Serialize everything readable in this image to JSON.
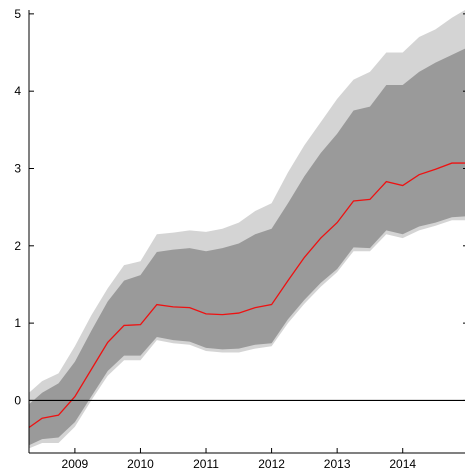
{
  "chart_data": {
    "type": "area",
    "title": "",
    "xlabel": "",
    "ylabel": "",
    "xlim": [
      2008.3,
      2014.95
    ],
    "ylim": [
      -0.68,
      5.05
    ],
    "x_ticks": [
      2009,
      2010,
      2011,
      2012,
      2013,
      2014
    ],
    "x_tick_labels": [
      "2009",
      "2010",
      "2011",
      "2012",
      "2013",
      "2014"
    ],
    "y_ticks": [
      0,
      1,
      2,
      3,
      4,
      5
    ],
    "y_tick_labels": [
      "0",
      "1",
      "2",
      "3",
      "4",
      "5"
    ],
    "grid": false,
    "zero_line": true,
    "colors": {
      "outer_band": "#d4d4d4",
      "inner_band": "#9a9a9a",
      "median_line": "#ee1111",
      "axis": "#000000"
    },
    "x": [
      2008.3,
      2008.5,
      2008.75,
      2009.0,
      2009.25,
      2009.5,
      2009.75,
      2010.0,
      2010.25,
      2010.5,
      2010.75,
      2011.0,
      2011.25,
      2011.5,
      2011.75,
      2012.0,
      2012.25,
      2012.5,
      2012.75,
      2013.0,
      2013.25,
      2013.5,
      2013.75,
      2014.0,
      2014.25,
      2014.5,
      2014.75,
      2014.95
    ],
    "series": [
      {
        "role": "outer_upper",
        "values": [
          0.1,
          0.25,
          0.35,
          0.7,
          1.1,
          1.45,
          1.75,
          1.8,
          2.15,
          2.17,
          2.2,
          2.18,
          2.22,
          2.3,
          2.45,
          2.55,
          2.95,
          3.3,
          3.6,
          3.9,
          4.15,
          4.25,
          4.5,
          4.5,
          4.7,
          4.8,
          4.95,
          5.05
        ]
      },
      {
        "role": "inner_upper",
        "values": [
          -0.05,
          0.1,
          0.22,
          0.5,
          0.9,
          1.28,
          1.55,
          1.62,
          1.92,
          1.95,
          1.97,
          1.93,
          1.97,
          2.03,
          2.15,
          2.22,
          2.55,
          2.9,
          3.2,
          3.45,
          3.75,
          3.8,
          4.08,
          4.08,
          4.25,
          4.37,
          4.47,
          4.55
        ]
      },
      {
        "role": "median",
        "values": [
          -0.35,
          -0.23,
          -0.19,
          0.05,
          0.4,
          0.75,
          0.97,
          0.98,
          1.24,
          1.21,
          1.2,
          1.12,
          1.11,
          1.13,
          1.2,
          1.24,
          1.55,
          1.85,
          2.1,
          2.3,
          2.58,
          2.6,
          2.83,
          2.78,
          2.92,
          2.99,
          3.07,
          3.07
        ]
      },
      {
        "role": "inner_lower",
        "values": [
          -0.58,
          -0.5,
          -0.48,
          -0.28,
          0.05,
          0.38,
          0.58,
          0.58,
          0.82,
          0.78,
          0.76,
          0.68,
          0.66,
          0.67,
          0.72,
          0.74,
          1.05,
          1.3,
          1.52,
          1.7,
          1.98,
          1.97,
          2.2,
          2.15,
          2.25,
          2.3,
          2.37,
          2.38
        ]
      },
      {
        "role": "outer_lower",
        "values": [
          -0.62,
          -0.55,
          -0.55,
          -0.34,
          0.0,
          0.32,
          0.52,
          0.52,
          0.78,
          0.74,
          0.72,
          0.64,
          0.62,
          0.62,
          0.67,
          0.7,
          1.0,
          1.25,
          1.47,
          1.66,
          1.93,
          1.93,
          2.15,
          2.1,
          2.2,
          2.26,
          2.33,
          2.33
        ]
      }
    ]
  }
}
